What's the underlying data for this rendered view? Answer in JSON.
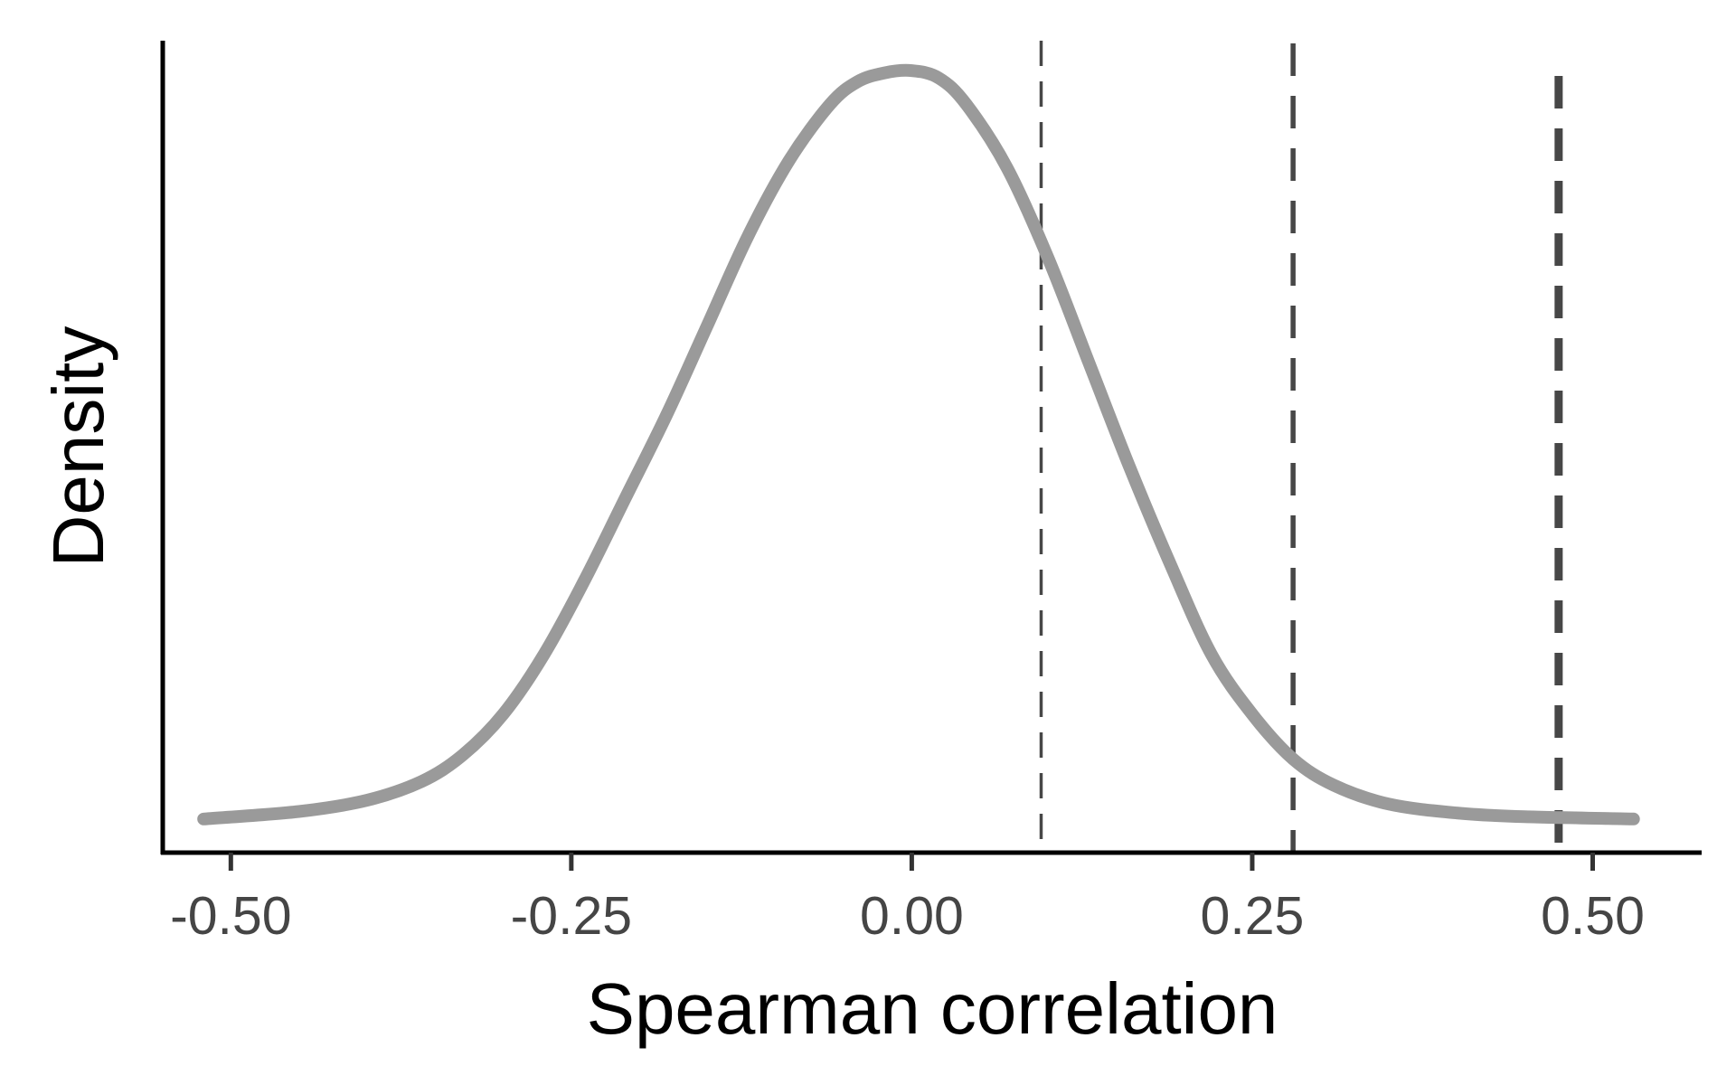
{
  "chart_data": {
    "type": "line",
    "title": "",
    "xlabel": "Spearman correlation",
    "ylabel": "Density",
    "xlim": [
      -0.55,
      0.58
    ],
    "ylim": [
      -0.045,
      1.04
    ],
    "x_ticks": [
      {
        "value": -0.5,
        "label": "-0.50"
      },
      {
        "value": -0.25,
        "label": "-0.25"
      },
      {
        "value": 0.0,
        "label": "0.00"
      },
      {
        "value": 0.25,
        "label": "0.25"
      },
      {
        "value": 0.5,
        "label": "0.50"
      }
    ],
    "y_ticks_shown": false,
    "grid": false,
    "legend": "none",
    "colors": {
      "curve": "#9a9a9a",
      "reference_lines": "#474747",
      "axis": "#000000",
      "tick_labels": "#454545"
    },
    "series": [
      {
        "x": [
          -0.52,
          -0.45,
          -0.4,
          -0.36,
          -0.33,
          -0.3,
          -0.27,
          -0.24,
          -0.21,
          -0.18,
          -0.15,
          -0.12,
          -0.09,
          -0.06,
          -0.04,
          -0.02,
          0.0,
          0.02,
          0.04,
          0.07,
          0.1,
          0.13,
          0.16,
          0.19,
          0.22,
          0.25,
          0.28,
          0.31,
          0.35,
          0.4,
          0.45,
          0.53
        ],
        "y": [
          0.0,
          0.01,
          0.025,
          0.05,
          0.085,
          0.14,
          0.22,
          0.32,
          0.43,
          0.54,
          0.66,
          0.78,
          0.88,
          0.955,
          0.985,
          0.997,
          1.0,
          0.99,
          0.955,
          0.87,
          0.75,
          0.61,
          0.47,
          0.34,
          0.22,
          0.14,
          0.08,
          0.045,
          0.02,
          0.008,
          0.003,
          0.0
        ]
      }
    ],
    "reference_lines": [
      {
        "x": 0.095,
        "style": "dashed",
        "weight": "thin"
      },
      {
        "x": 0.28,
        "style": "dashed",
        "weight": "medium"
      },
      {
        "x": 0.475,
        "style": "dashed",
        "weight": "thick"
      }
    ]
  }
}
